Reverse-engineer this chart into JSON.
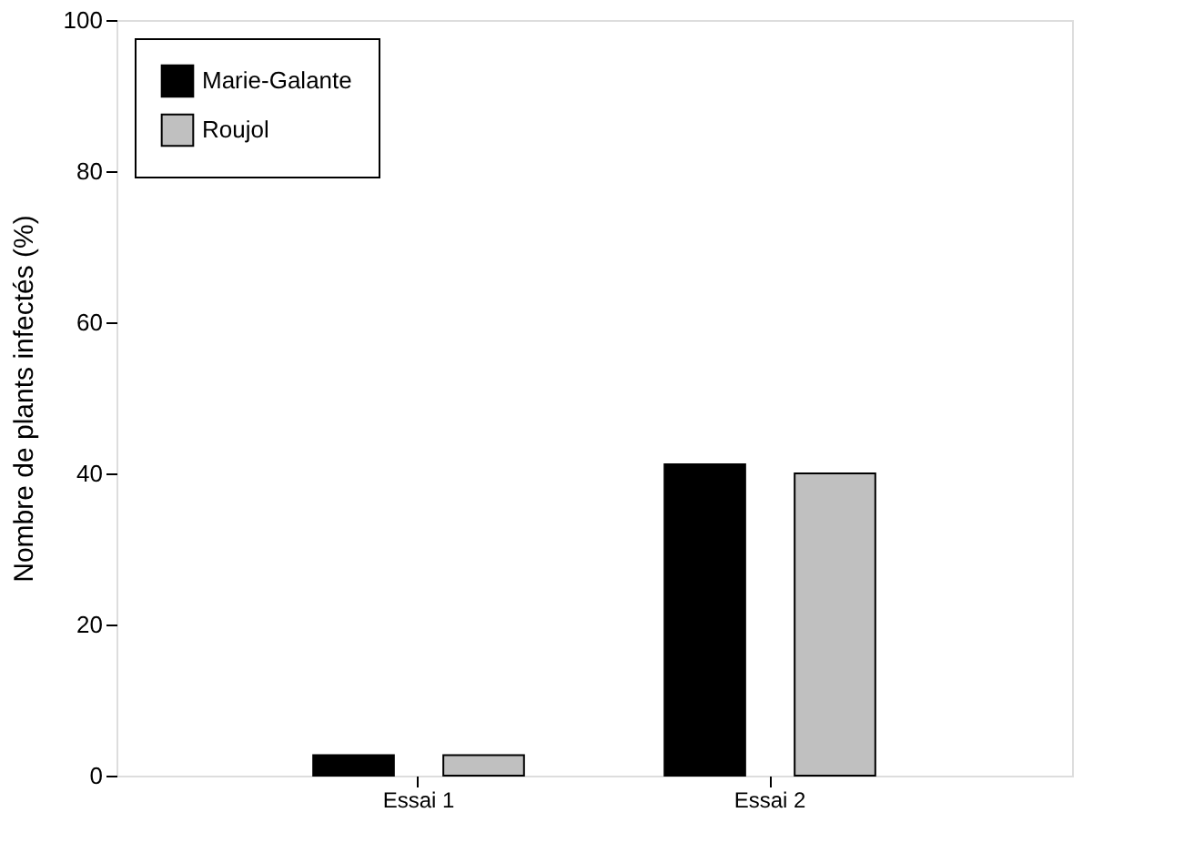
{
  "chart_data": {
    "type": "bar",
    "ylabel": "Nombre de plants infectés (%)",
    "categories": [
      "Essai 1",
      "Essai 2"
    ],
    "series": [
      {
        "name": "Marie-Galante",
        "color": "#000000",
        "values": [
          2.7,
          41.2
        ]
      },
      {
        "name": "Roujol",
        "color": "#c0c0c0",
        "values": [
          2.7,
          40.0
        ]
      }
    ],
    "ylim": [
      0,
      100
    ],
    "yticks": [
      0,
      20,
      40,
      60,
      80,
      100
    ],
    "grid": false,
    "legend": "top left"
  }
}
